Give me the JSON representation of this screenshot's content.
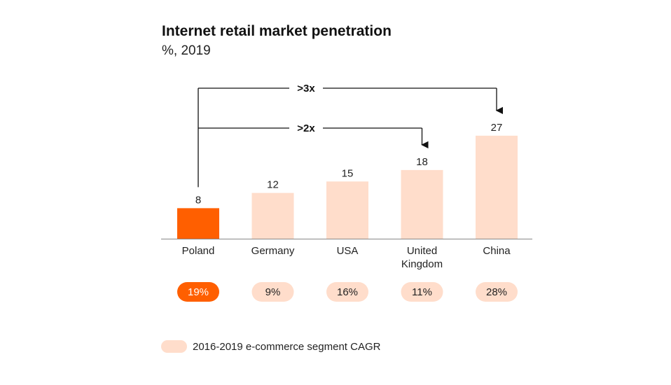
{
  "chart_data": {
    "type": "bar",
    "title": "Internet retail market penetration",
    "subtitle": "%, 2019",
    "categories": [
      "Poland",
      "Germany",
      "USA",
      "United Kingdom",
      "China"
    ],
    "category_lines": [
      [
        "Poland"
      ],
      [
        "Germany"
      ],
      [
        "USA"
      ],
      [
        "United",
        "Kingdom"
      ],
      [
        "China"
      ]
    ],
    "values": [
      8,
      12,
      15,
      18,
      27
    ],
    "value_labels": [
      "8",
      "12",
      "15",
      "18",
      "27"
    ],
    "cagr_labels": [
      "19%",
      "9%",
      "16%",
      "11%",
      "28%"
    ],
    "highlight_index": 0,
    "ylim": [
      0,
      30
    ],
    "grid": false,
    "comparisons": [
      {
        "label": ">3x",
        "from": "Poland",
        "to": "China"
      },
      {
        "label": ">2x",
        "from": "Poland",
        "to": "United Kingdom"
      }
    ],
    "legend": {
      "label": "2016-2019 e-commerce segment CAGR",
      "position": "bottom-left"
    }
  },
  "colors": {
    "highlight": "#FF5F00",
    "bar": "#FFDDCB",
    "axis": "#888888",
    "arrow": "#111111",
    "text": "#222222"
  }
}
